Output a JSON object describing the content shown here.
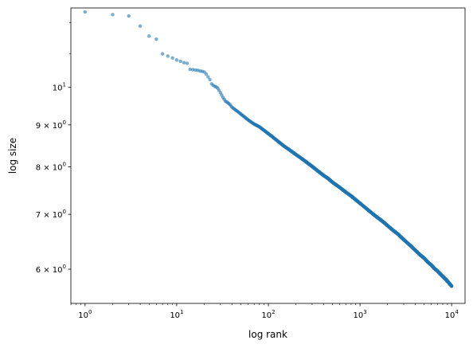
{
  "chart_data": {
    "type": "scatter",
    "title": "",
    "xlabel": "log rank",
    "ylabel": "log size",
    "xscale": "log",
    "yscale": "log",
    "xlim": [
      0.7,
      14000
    ],
    "ylim": [
      5.45,
      12.5
    ],
    "grid": false,
    "legend": "none",
    "marker_color": "#1f77b4",
    "marker_alpha": 0.6,
    "x_ticks": [
      {
        "value": 1,
        "base": "10",
        "exp": "0"
      },
      {
        "value": 10,
        "base": "10",
        "exp": "1"
      },
      {
        "value": 100,
        "base": "10",
        "exp": "2"
      },
      {
        "value": 1000,
        "base": "10",
        "exp": "3"
      },
      {
        "value": 10000,
        "base": "10",
        "exp": "4"
      }
    ],
    "y_ticks": [
      {
        "value": 6,
        "mantissa": "6",
        "base": "10",
        "exp": "0"
      },
      {
        "value": 7,
        "mantissa": "7",
        "base": "10",
        "exp": "0"
      },
      {
        "value": 8,
        "mantissa": "8",
        "base": "10",
        "exp": "0"
      },
      {
        "value": 9,
        "mantissa": "9",
        "base": "10",
        "exp": "0"
      },
      {
        "value": 10,
        "mantissa": "",
        "base": "10",
        "exp": "1"
      }
    ],
    "points": [
      [
        1,
        12.36
      ],
      [
        2,
        12.27
      ],
      [
        3,
        12.22
      ],
      [
        4,
        11.88
      ],
      [
        5,
        11.55
      ],
      [
        6,
        11.45
      ],
      [
        7,
        10.99
      ],
      [
        8,
        10.92
      ],
      [
        9,
        10.86
      ],
      [
        10,
        10.8
      ],
      [
        11,
        10.76
      ],
      [
        12,
        10.72
      ],
      [
        13,
        10.7
      ],
      [
        14,
        10.52
      ],
      [
        15,
        10.51
      ],
      [
        16,
        10.5
      ],
      [
        17,
        10.49
      ],
      [
        18,
        10.47
      ],
      [
        19,
        10.46
      ],
      [
        20,
        10.44
      ],
      [
        21,
        10.38
      ],
      [
        22,
        10.3
      ],
      [
        23,
        10.22
      ],
      [
        24,
        10.1
      ],
      [
        25,
        10.06
      ],
      [
        26,
        10.03
      ],
      [
        27,
        10.01
      ],
      [
        28,
        9.98
      ],
      [
        29,
        9.92
      ],
      [
        30,
        9.85
      ],
      [
        32,
        9.72
      ],
      [
        34,
        9.62
      ],
      [
        36,
        9.58
      ],
      [
        38,
        9.53
      ],
      [
        40,
        9.46
      ],
      [
        43,
        9.4
      ],
      [
        46,
        9.35
      ],
      [
        50,
        9.28
      ],
      [
        55,
        9.2
      ],
      [
        60,
        9.13
      ],
      [
        65,
        9.07
      ],
      [
        70,
        9.02
      ],
      [
        80,
        8.95
      ],
      [
        90,
        8.86
      ],
      [
        100,
        8.78
      ],
      [
        110,
        8.71
      ],
      [
        120,
        8.64
      ],
      [
        135,
        8.55
      ],
      [
        150,
        8.47
      ],
      [
        170,
        8.39
      ],
      [
        200,
        8.28
      ],
      [
        230,
        8.19
      ],
      [
        270,
        8.08
      ],
      [
        300,
        8.01
      ],
      [
        350,
        7.9
      ],
      [
        400,
        7.81
      ],
      [
        450,
        7.74
      ],
      [
        500,
        7.66
      ],
      [
        600,
        7.55
      ],
      [
        700,
        7.45
      ],
      [
        800,
        7.37
      ],
      [
        900,
        7.29
      ],
      [
        1000,
        7.22
      ],
      [
        1200,
        7.1
      ],
      [
        1400,
        7.0
      ],
      [
        1600,
        6.92
      ],
      [
        1800,
        6.85
      ],
      [
        2000,
        6.78
      ],
      [
        2300,
        6.69
      ],
      [
        2600,
        6.62
      ],
      [
        3000,
        6.52
      ],
      [
        3500,
        6.42
      ],
      [
        4000,
        6.33
      ],
      [
        4500,
        6.25
      ],
      [
        5000,
        6.19
      ],
      [
        5500,
        6.12
      ],
      [
        6000,
        6.07
      ],
      [
        6500,
        6.01
      ],
      [
        7000,
        5.97
      ],
      [
        7500,
        5.92
      ],
      [
        8000,
        5.88
      ],
      [
        8500,
        5.84
      ],
      [
        9000,
        5.8
      ],
      [
        9500,
        5.76
      ],
      [
        10000,
        5.72
      ]
    ]
  }
}
